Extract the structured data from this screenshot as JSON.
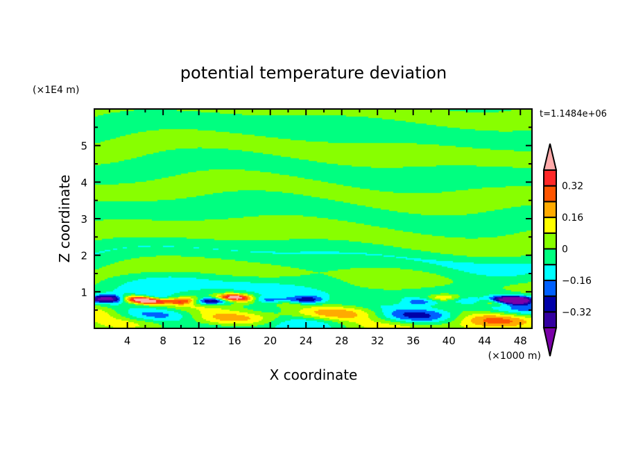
{
  "chart_data": {
    "type": "heatmap",
    "title": "potential temperature deviation",
    "xlabel": "X coordinate",
    "ylabel": "Z coordinate",
    "x_unit_label": "(×1000 m)",
    "y_unit_label": "(×1E4 m)",
    "time_label": "t=1.1484e+06",
    "xlim": [
      0.3,
      49.3
    ],
    "ylim": [
      0,
      6
    ],
    "x_ticks": [
      4,
      8,
      12,
      16,
      20,
      24,
      28,
      32,
      36,
      40,
      44,
      48
    ],
    "x_tick_labels": [
      "4",
      "8",
      "12",
      "16",
      "20",
      "24",
      "28",
      "32",
      "36",
      "40",
      "44",
      "48"
    ],
    "y_ticks": [
      1,
      2,
      3,
      4,
      5
    ],
    "y_tick_labels": [
      "1",
      "2",
      "3",
      "4",
      "5"
    ],
    "levels": [
      -0.4,
      -0.32,
      -0.24,
      -0.16,
      -0.08,
      0,
      0.08,
      0.16,
      0.24,
      0.32,
      0.4
    ],
    "colors": [
      "#7a00a8",
      "#3300a0",
      "#0000a8",
      "#0060ff",
      "#00ffff",
      "#00ff80",
      "#88ff00",
      "#ffff00",
      "#ffaa00",
      "#ff5500",
      "#ff2828",
      "#ffaaaa"
    ],
    "colorbar_labels": [
      {
        "value": 0.32,
        "label": "0.32"
      },
      {
        "value": 0.16,
        "label": "0.16"
      },
      {
        "value": 0,
        "label": "0"
      },
      {
        "value": -0.16,
        "label": "−0.16"
      },
      {
        "value": -0.32,
        "label": "−0.32"
      }
    ]
  }
}
